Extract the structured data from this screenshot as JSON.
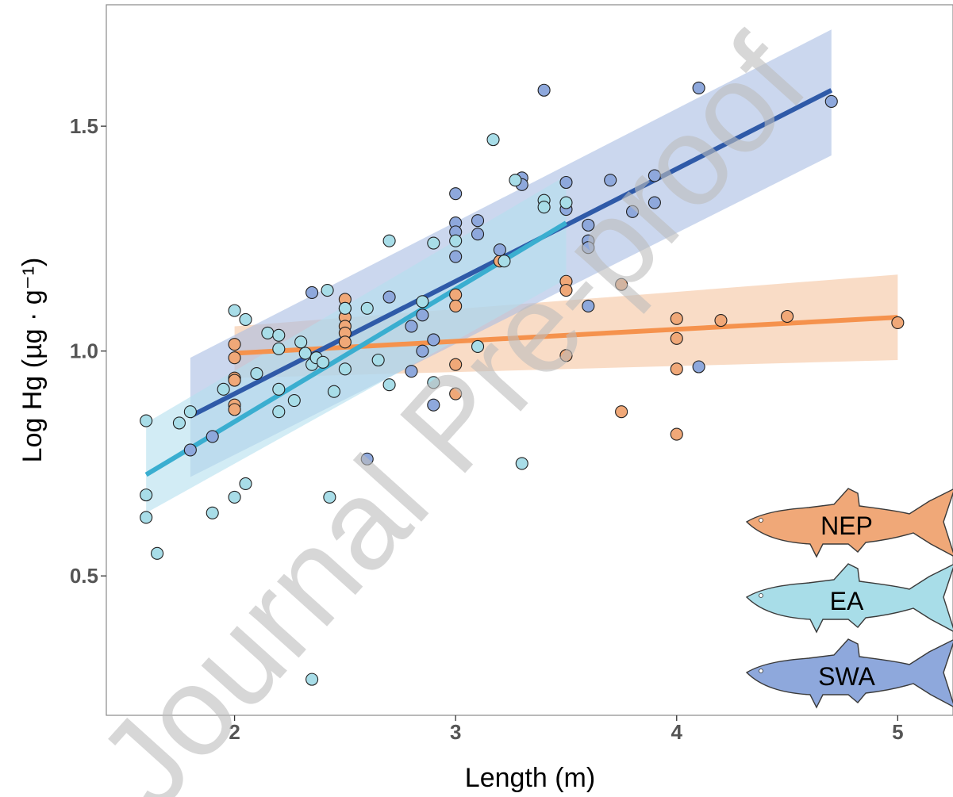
{
  "watermark": "Journal Pre-proof",
  "chart_data": {
    "type": "scatter",
    "xlabel": "Length (m)",
    "ylabel": "Log Hg (µg · g⁻¹)",
    "xlim": [
      1.42,
      5.25
    ],
    "ylim": [
      0.19,
      1.77
    ],
    "xticks": [
      2,
      3,
      4,
      5
    ],
    "yticks": [
      0.5,
      1.0,
      1.5
    ],
    "ytick_labels": [
      "0.5",
      "1.0",
      "1.5"
    ],
    "grid": false,
    "legend": {
      "placement": "bottom-right",
      "style": "shark silhouettes"
    },
    "series": [
      {
        "name": "NEP",
        "color": "#f0a878",
        "line_color": "#f5924d",
        "band_color": "#f5c4a0",
        "fit": {
          "x": [
            2.0,
            5.0
          ],
          "y": [
            0.995,
            1.075
          ]
        },
        "band": {
          "x": [
            2.0,
            5.0
          ],
          "lower": [
            0.94,
            0.98
          ],
          "upper": [
            1.055,
            1.17
          ]
        },
        "points": [
          [
            2.0,
            1.015
          ],
          [
            2.0,
            0.985
          ],
          [
            2.0,
            0.94
          ],
          [
            2.0,
            0.935
          ],
          [
            2.0,
            0.88
          ],
          [
            2.0,
            0.87
          ],
          [
            2.5,
            1.115
          ],
          [
            2.5,
            1.095
          ],
          [
            2.5,
            1.075
          ],
          [
            2.5,
            1.055
          ],
          [
            2.5,
            1.04
          ],
          [
            2.5,
            1.02
          ],
          [
            3.0,
            1.125
          ],
          [
            3.0,
            1.1
          ],
          [
            3.0,
            0.97
          ],
          [
            3.0,
            0.905
          ],
          [
            3.2,
            1.2
          ],
          [
            3.5,
            1.155
          ],
          [
            3.5,
            1.135
          ],
          [
            3.5,
            0.99
          ],
          [
            3.75,
            1.148
          ],
          [
            3.75,
            0.865
          ],
          [
            4.0,
            1.072
          ],
          [
            4.0,
            1.028
          ],
          [
            4.0,
            0.96
          ],
          [
            4.0,
            0.815
          ],
          [
            4.2,
            1.068
          ],
          [
            4.5,
            1.077
          ],
          [
            5.0,
            1.063
          ]
        ]
      },
      {
        "name": "EA",
        "color": "#a8dde8",
        "line_color": "#3aaed0",
        "band_color": "#b4e0ee",
        "fit": {
          "x": [
            1.6,
            3.5
          ],
          "y": [
            0.725,
            1.285
          ]
        },
        "band": {
          "x": [
            1.6,
            3.5
          ],
          "lower": [
            0.64,
            1.16
          ],
          "upper": [
            0.84,
            1.39
          ]
        },
        "points": [
          [
            1.6,
            0.845
          ],
          [
            1.6,
            0.68
          ],
          [
            1.6,
            0.63
          ],
          [
            1.65,
            0.55
          ],
          [
            1.75,
            0.84
          ],
          [
            1.8,
            0.865
          ],
          [
            1.9,
            0.64
          ],
          [
            1.95,
            0.915
          ],
          [
            2.0,
            0.675
          ],
          [
            2.0,
            1.09
          ],
          [
            2.05,
            1.07
          ],
          [
            2.05,
            0.705
          ],
          [
            2.1,
            0.95
          ],
          [
            2.15,
            1.04
          ],
          [
            2.2,
            1.035
          ],
          [
            2.2,
            1.005
          ],
          [
            2.2,
            0.915
          ],
          [
            2.2,
            0.865
          ],
          [
            2.27,
            0.89
          ],
          [
            2.3,
            1.02
          ],
          [
            2.32,
            0.995
          ],
          [
            2.35,
            0.97
          ],
          [
            2.37,
            0.985
          ],
          [
            2.4,
            0.975
          ],
          [
            2.42,
            1.135
          ],
          [
            2.43,
            0.675
          ],
          [
            2.45,
            0.91
          ],
          [
            2.5,
            0.96
          ],
          [
            2.5,
            1.095
          ],
          [
            2.6,
            1.095
          ],
          [
            2.65,
            0.98
          ],
          [
            2.7,
            1.245
          ],
          [
            2.7,
            0.925
          ],
          [
            2.85,
            1.11
          ],
          [
            2.9,
            1.24
          ],
          [
            2.9,
            0.93
          ],
          [
            3.0,
            1.245
          ],
          [
            3.1,
            1.01
          ],
          [
            3.17,
            1.47
          ],
          [
            3.22,
            1.2
          ],
          [
            3.27,
            1.38
          ],
          [
            3.3,
            0.75
          ],
          [
            3.4,
            1.335
          ],
          [
            3.4,
            1.32
          ],
          [
            3.5,
            1.33
          ],
          [
            2.35,
            0.27
          ]
        ]
      },
      {
        "name": "SWA",
        "color": "#8ea8dc",
        "line_color": "#2f5aa8",
        "band_color": "#a8bde3",
        "fit": {
          "x": [
            1.8,
            4.7
          ],
          "y": [
            0.855,
            1.58
          ]
        },
        "band": {
          "x": [
            1.8,
            4.7
          ],
          "lower": [
            0.72,
            1.435
          ],
          "upper": [
            0.985,
            1.715
          ]
        },
        "points": [
          [
            1.8,
            0.78
          ],
          [
            1.9,
            0.81
          ],
          [
            2.35,
            1.13
          ],
          [
            2.6,
            0.76
          ],
          [
            2.7,
            1.12
          ],
          [
            2.8,
            0.955
          ],
          [
            2.8,
            1.055
          ],
          [
            2.85,
            1.0
          ],
          [
            2.85,
            1.08
          ],
          [
            2.9,
            1.025
          ],
          [
            2.9,
            0.88
          ],
          [
            3.0,
            1.35
          ],
          [
            3.0,
            1.285
          ],
          [
            3.0,
            1.265
          ],
          [
            3.0,
            1.21
          ],
          [
            3.1,
            1.29
          ],
          [
            3.1,
            1.26
          ],
          [
            3.2,
            1.225
          ],
          [
            3.3,
            1.385
          ],
          [
            3.3,
            1.37
          ],
          [
            3.4,
            1.58
          ],
          [
            3.5,
            1.375
          ],
          [
            3.5,
            1.315
          ],
          [
            3.6,
            1.28
          ],
          [
            3.6,
            1.245
          ],
          [
            3.6,
            1.23
          ],
          [
            3.6,
            1.1
          ],
          [
            3.7,
            1.38
          ],
          [
            3.8,
            1.31
          ],
          [
            3.9,
            1.39
          ],
          [
            3.9,
            1.33
          ],
          [
            4.1,
            1.585
          ],
          [
            4.1,
            0.965
          ],
          [
            4.7,
            1.555
          ]
        ]
      }
    ]
  }
}
